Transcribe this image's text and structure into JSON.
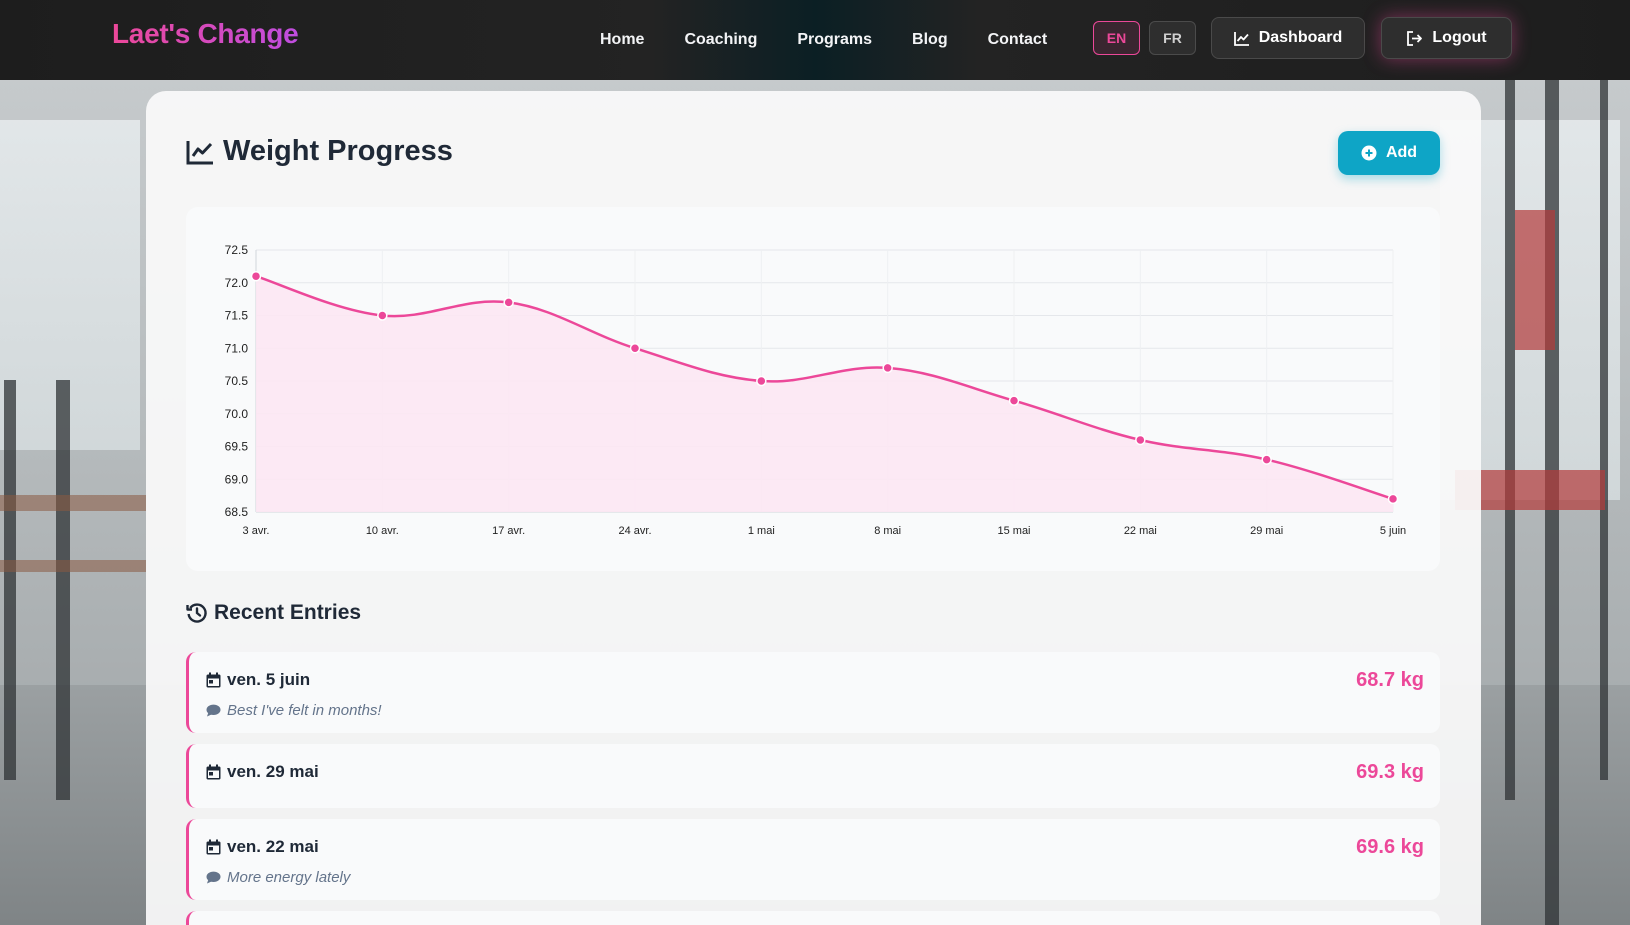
{
  "nav": {
    "brand": "Laet's Change",
    "links": [
      {
        "label": "Home"
      },
      {
        "label": "Coaching"
      },
      {
        "label": "Programs"
      },
      {
        "label": "Blog"
      },
      {
        "label": "Contact"
      }
    ],
    "lang_en": "EN",
    "lang_fr": "FR",
    "active_lang": "EN",
    "dashboard_label": "Dashboard",
    "logout_label": "Logout",
    "icons": {
      "dashboard": "chart-line-icon",
      "logout": "sign-out-icon"
    }
  },
  "page": {
    "title": "Weight Progress",
    "title_icon": "chart-line-icon",
    "add_label": "Add",
    "add_icon": "plus-circle-icon"
  },
  "chart_data": {
    "type": "line",
    "x": [
      "3 avr.",
      "10 avr.",
      "17 avr.",
      "24 avr.",
      "1 mai",
      "8 mai",
      "15 mai",
      "22 mai",
      "29 mai",
      "5 juin"
    ],
    "series": [
      {
        "values": [
          72.1,
          71.5,
          71.7,
          71.0,
          70.5,
          70.7,
          70.2,
          69.6,
          69.3,
          68.7
        ],
        "color": "#ec4899",
        "fill": "#fce7f3"
      }
    ],
    "yticks": [
      "72.5",
      "72.0",
      "71.5",
      "71.0",
      "70.5",
      "70.0",
      "69.5",
      "69.0",
      "68.5"
    ],
    "ylim": [
      68.5,
      72.5
    ],
    "grid": true,
    "smooth": true,
    "title": "",
    "xlabel": "",
    "ylabel": ""
  },
  "recent": {
    "title": "Recent Entries",
    "title_icon": "history-icon",
    "entries": [
      {
        "date": "ven. 5 juin",
        "weight": "68.7 kg",
        "note": "Best I've felt in months!"
      },
      {
        "date": "ven. 29 mai",
        "weight": "69.3 kg",
        "note": ""
      },
      {
        "date": "ven. 22 mai",
        "weight": "69.6 kg",
        "note": "More energy lately"
      }
    ]
  },
  "colors": {
    "accent": "#ec4899",
    "button": "#0ea5c6",
    "navbar": "#1d1d1d"
  }
}
